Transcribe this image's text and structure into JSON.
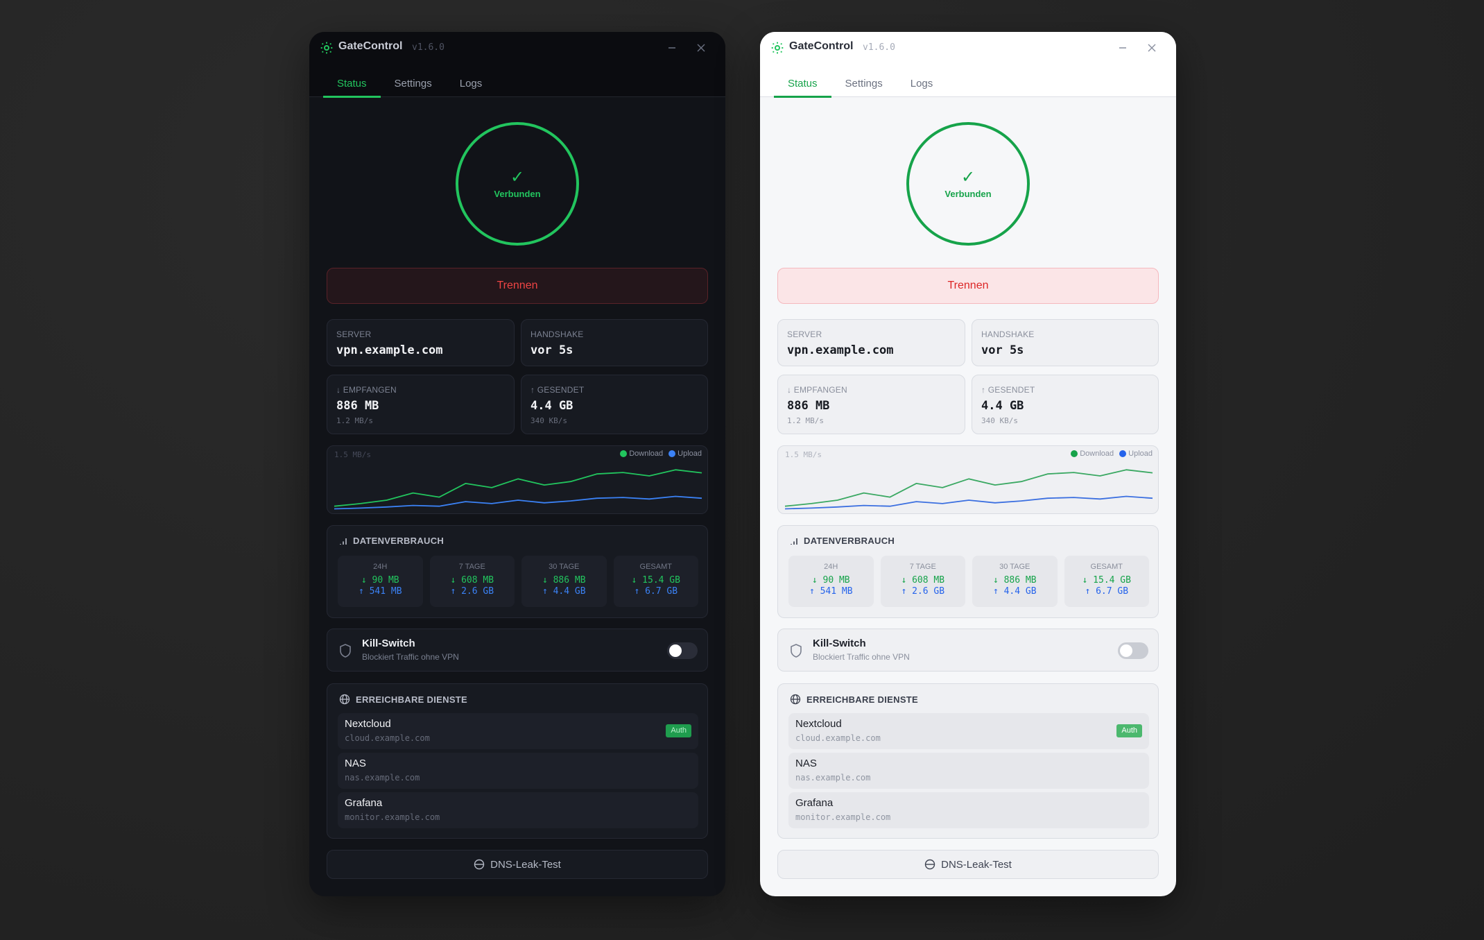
{
  "app": {
    "title": "GateControl",
    "version": "v1.6.0",
    "minimize_icon": "minimize-icon",
    "close_icon": "close-icon",
    "logo_icon": "sun-logo-icon"
  },
  "tabs": [
    {
      "label": "Status",
      "active": true
    },
    {
      "label": "Settings",
      "active": false
    },
    {
      "label": "Logs",
      "active": false
    }
  ],
  "status": {
    "icon": "✓",
    "label": "Verbunden",
    "color": "#22c55e"
  },
  "disconnect_button": {
    "label": "Trennen",
    "color": "#ef4444"
  },
  "info_cards": {
    "server": {
      "label": "SERVER",
      "value": "vpn.example.com"
    },
    "handshake": {
      "label": "HANDSHAKE",
      "value": "vor 5s"
    },
    "received": {
      "label": "↓ EMPFANGEN",
      "value": "886 MB",
      "rate": "1.2 MB/s"
    },
    "sent": {
      "label": "↑ GESENDET",
      "value": "4.4 GB",
      "rate": "340 KB/s"
    }
  },
  "chart": {
    "ylabel": "1.5 MB/s",
    "legend": [
      {
        "label": "Download",
        "color": "#22c55e"
      },
      {
        "label": "Upload",
        "color": "#3b82f6"
      }
    ]
  },
  "chart_data": {
    "type": "line",
    "title": "",
    "xlabel": "",
    "ylabel": "MB/s",
    "ylim": [
      0,
      1.5
    ],
    "y_tick_labels": [
      "1.5 MB/s"
    ],
    "grid": false,
    "legend_position": "top-right",
    "x": [
      1,
      2,
      3,
      4,
      5,
      6,
      7,
      8,
      9,
      10,
      11,
      12,
      13,
      14,
      15
    ],
    "series": [
      {
        "name": "Download",
        "color": "#22c55e",
        "values": [
          0.17,
          0.24,
          0.33,
          0.52,
          0.41,
          0.77,
          0.66,
          0.89,
          0.73,
          0.82,
          1.02,
          1.06,
          0.97,
          1.13,
          1.05
        ]
      },
      {
        "name": "Upload",
        "color": "#3b82f6",
        "values": [
          0.1,
          0.12,
          0.15,
          0.19,
          0.17,
          0.29,
          0.24,
          0.33,
          0.26,
          0.31,
          0.38,
          0.4,
          0.36,
          0.43,
          0.38
        ]
      }
    ]
  },
  "usage": {
    "title": "DATENVERBRAUCH",
    "icon": "bar-chart-icon",
    "periods": [
      {
        "label": "24H",
        "down": "↓ 90 MB",
        "up": "↑ 541 MB"
      },
      {
        "label": "7 TAGE",
        "down": "↓ 608 MB",
        "up": "↑ 2.6 GB"
      },
      {
        "label": "30 TAGE",
        "down": "↓ 886 MB",
        "up": "↑ 4.4 GB"
      },
      {
        "label": "GESAMT",
        "down": "↓ 15.4 GB",
        "up": "↑ 6.7 GB"
      }
    ]
  },
  "kill_switch": {
    "title": "Kill-Switch",
    "description": "Blockiert Traffic ohne VPN",
    "enabled": false,
    "icon": "shield-icon"
  },
  "services": {
    "title": "ERREICHBARE DIENSTE",
    "icon": "globe-icon",
    "items": [
      {
        "name": "Nextcloud",
        "host": "cloud.example.com",
        "badge": "Auth"
      },
      {
        "name": "NAS",
        "host": "nas.example.com",
        "badge": null
      },
      {
        "name": "Grafana",
        "host": "monitor.example.com",
        "badge": null
      }
    ]
  },
  "dns_button": {
    "label": "DNS-Leak-Test",
    "icon": "dns-test-icon"
  },
  "themes": [
    "dark",
    "light"
  ]
}
